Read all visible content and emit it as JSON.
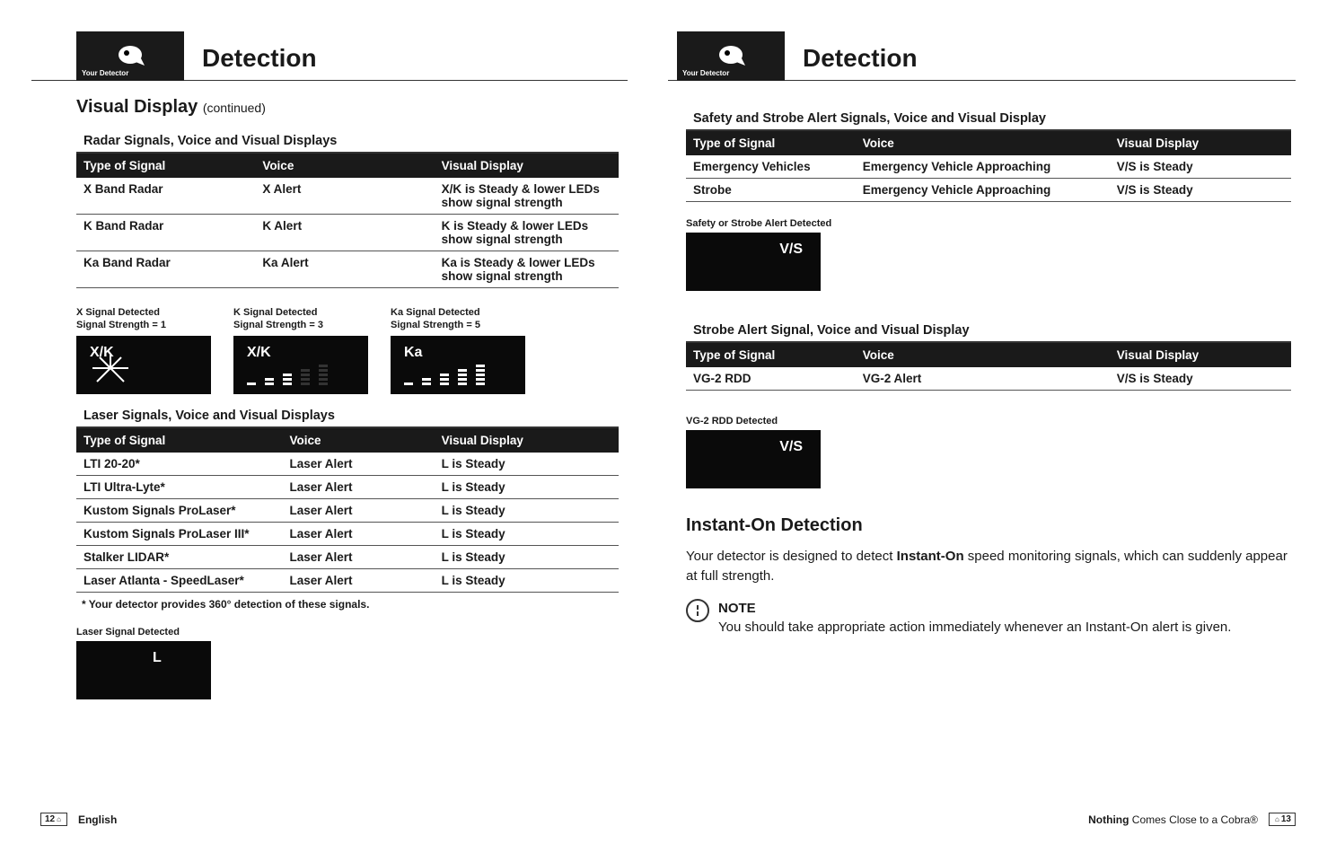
{
  "header": {
    "logo_text": "Your Detector",
    "title": "Detection"
  },
  "left": {
    "section_title": "Visual Display",
    "section_sub": "(continued)",
    "radar": {
      "heading": "Radar Signals, Voice and Visual Displays",
      "cols": [
        "Type of Signal",
        "Voice",
        "Visual Display"
      ],
      "rows": [
        [
          "X Band Radar",
          "X Alert",
          "X/K is Steady & lower LEDs show signal strength"
        ],
        [
          "K Band Radar",
          "K Alert",
          "K is Steady & lower LEDs show signal strength"
        ],
        [
          "Ka Band Radar",
          "Ka Alert",
          "Ka is Steady & lower LEDs show signal strength"
        ]
      ]
    },
    "displays": [
      {
        "caption_l1": "X Signal Detected",
        "caption_l2": "Signal Strength = 1",
        "label": "X/K",
        "mode": "radial"
      },
      {
        "caption_l1": "K Signal Detected",
        "caption_l2": "Signal Strength = 3",
        "label": "X/K",
        "mode": "bars",
        "lit": [
          1,
          2,
          3
        ]
      },
      {
        "caption_l1": "Ka Signal Detected",
        "caption_l2": "Signal Strength = 5",
        "label": "Ka",
        "mode": "bars",
        "lit": [
          1,
          2,
          3,
          4,
          5
        ]
      }
    ],
    "laser": {
      "heading": "Laser Signals, Voice and Visual Displays",
      "cols": [
        "Type of Signal",
        "Voice",
        "Visual Display"
      ],
      "rows": [
        [
          "LTI 20-20*",
          "Laser Alert",
          "L is Steady"
        ],
        [
          "LTI Ultra-Lyte*",
          "Laser Alert",
          "L is Steady"
        ],
        [
          "Kustom Signals ProLaser*",
          "Laser Alert",
          "L is Steady"
        ],
        [
          "Kustom Signals ProLaser III*",
          "Laser Alert",
          "L is Steady"
        ],
        [
          "Stalker LIDAR*",
          "Laser Alert",
          "L is Steady"
        ],
        [
          "Laser Atlanta - SpeedLaser*",
          "Laser Alert",
          "L is Steady"
        ]
      ],
      "footnote": "* Your detector provides 360° detection of these signals."
    },
    "laser_display": {
      "caption": "Laser Signal Detected",
      "label": "L"
    }
  },
  "right": {
    "safety": {
      "heading": "Safety and Strobe Alert Signals, Voice and Visual Display",
      "cols": [
        "Type of Signal",
        "Voice",
        "Visual Display"
      ],
      "rows": [
        [
          "Emergency Vehicles",
          "Emergency Vehicle Approaching",
          "V/S is Steady"
        ],
        [
          "Strobe",
          "Emergency Vehicle Approaching",
          "V/S is Steady"
        ]
      ]
    },
    "safety_display": {
      "caption": "Safety or Strobe Alert Detected",
      "label": "V/S"
    },
    "strobe": {
      "heading": "Strobe Alert Signal, Voice and Visual Display",
      "cols": [
        "Type of Signal",
        "Voice",
        "Visual Display"
      ],
      "rows": [
        [
          "VG-2 RDD",
          "VG-2 Alert",
          "V/S is Steady"
        ]
      ]
    },
    "vg2_display": {
      "caption": "VG-2 RDD Detected",
      "label": "V/S"
    },
    "instant_on": {
      "title": "Instant-On Detection",
      "body_pre": "Your detector is designed to detect ",
      "body_bold": "Instant-On",
      "body_post": " speed monitoring signals, which can suddenly appear at full strength.",
      "note_title": "NOTE",
      "note_body": "You should take appropriate action immediately whenever an Instant-On alert is given."
    }
  },
  "footer": {
    "left_page": "12",
    "left_text": "English",
    "right_text_bold": "Nothing",
    "right_text_rest": " Comes Close to a Cobra®",
    "right_page": "13"
  }
}
